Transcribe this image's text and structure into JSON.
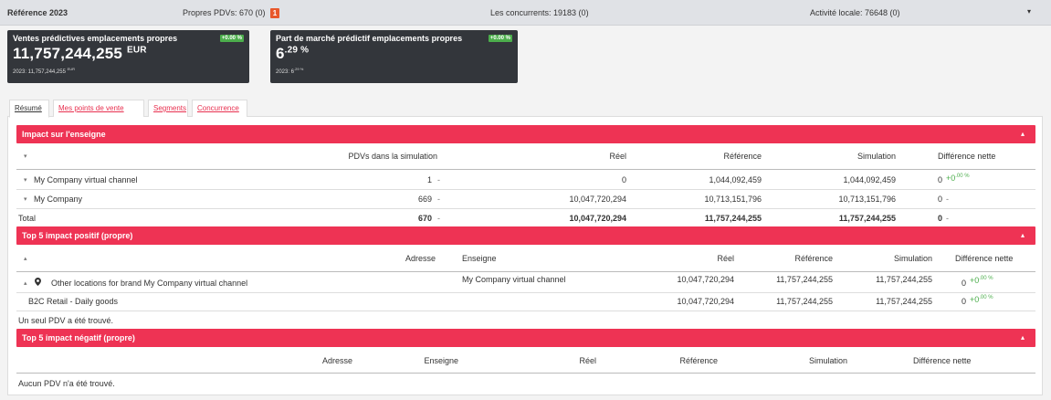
{
  "topbar": {
    "title": "Référence 2023",
    "own_pdvs": "Propres PDVs: 670 (0)",
    "own_badge": "1",
    "competitors": "Les concurrents: 19183 (0)",
    "local_activity": "Activité locale: 76648 (0)",
    "caret": "▾"
  },
  "kpis": [
    {
      "title": "Ventes prédictives emplacements propres",
      "value": "11,757,244,255",
      "unit": "EUR",
      "prev_label": "2023: 11,757,244,255",
      "prev_unit": "EUR",
      "badge": "+0.00 %"
    },
    {
      "title": "Part de marché prédictif emplacements propres",
      "value": "6",
      "unit": ".29 %",
      "prev_label": "2023: 6",
      "prev_unit": ".29 %",
      "badge": "+0.00 %"
    }
  ],
  "tabs": [
    "Résumé",
    "Mes points de vente",
    "Segments",
    "Concurrence"
  ],
  "impact": {
    "title": "Impact sur l'enseigne",
    "headers": {
      "pdvs": "PDVs dans la simulation",
      "reel": "Réel",
      "reference": "Référence",
      "simulation": "Simulation",
      "diff": "Différence nette"
    },
    "rows": [
      {
        "name": "My Company virtual channel",
        "pdvs": "1",
        "reel": "0",
        "reference": "1,044,092,459",
        "simulation": "1,044,092,459",
        "diff": "0",
        "diff_delta": "+0",
        "diff_pct": ".00 %"
      },
      {
        "name": "My Company",
        "pdvs": "669",
        "reel": "10,047,720,294",
        "reference": "10,713,151,796",
        "simulation": "10,713,151,796",
        "diff": "0",
        "diff_delta": "-"
      }
    ],
    "total": {
      "name": "Total",
      "pdvs": "670",
      "reel": "10,047,720,294",
      "reference": "11,757,244,255",
      "simulation": "11,757,244,255",
      "diff": "0",
      "diff_delta": "-"
    }
  },
  "positive": {
    "title": "Top 5 impact positif (propre)",
    "headers": {
      "adresse": "Adresse",
      "enseigne": "Enseigne",
      "reel": "Réel",
      "reference": "Référence",
      "simulation": "Simulation",
      "diff": "Différence nette"
    },
    "rows": [
      {
        "name": "Other locations for brand My Company virtual channel",
        "enseigne": "My Company virtual channel",
        "reel": "10,047,720,294",
        "reference": "11,757,244,255",
        "simulation": "11,757,244,255",
        "diff": "0",
        "diff_delta": "+0",
        "diff_pct": ".00 %"
      },
      {
        "name": "B2C Retail - Daily goods",
        "enseigne": "",
        "reel": "10,047,720,294",
        "reference": "11,757,244,255",
        "simulation": "11,757,244,255",
        "diff": "0",
        "diff_delta": "+0",
        "diff_pct": ".00 %"
      }
    ],
    "footer": "Un seul PDV a été trouvé."
  },
  "negative": {
    "title": "Top 5 impact négatif (propre)",
    "headers": {
      "adresse": "Adresse",
      "enseigne": "Enseigne",
      "reel": "Réel",
      "reference": "Référence",
      "simulation": "Simulation",
      "diff": "Différence nette"
    },
    "footer": "Aucun PDV n'a été trouvé."
  },
  "misc": {
    "dash": "-",
    "chevron_up": "▴",
    "caret_down": "▾",
    "caret_up": "▴"
  },
  "colors": {
    "accent": "#ee3354",
    "topbar": "#e0e2e6",
    "kpi_bg": "#33363b",
    "positive": "#4cae4c",
    "badge": "#e8572a"
  }
}
